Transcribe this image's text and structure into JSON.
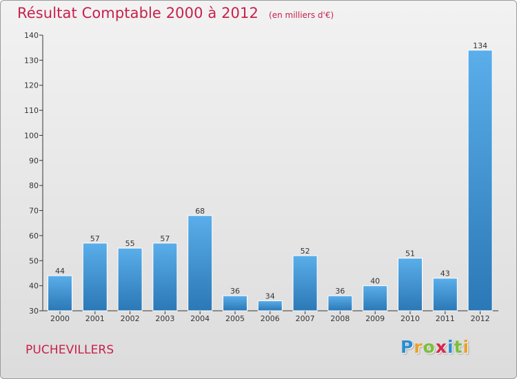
{
  "chart_data": {
    "type": "bar",
    "title": "Résultat Comptable 2000 à 2012",
    "unit_note": "(en milliers d'€)",
    "categories": [
      "2000",
      "2001",
      "2002",
      "2003",
      "2004",
      "2005",
      "2006",
      "2007",
      "2008",
      "2009",
      "2010",
      "2011",
      "2012"
    ],
    "values": [
      44,
      57,
      55,
      57,
      68,
      36,
      34,
      52,
      36,
      40,
      51,
      43,
      134
    ],
    "ylim": [
      30,
      140
    ],
    "yticks": [
      30,
      40,
      50,
      60,
      70,
      80,
      90,
      100,
      110,
      120,
      130,
      140
    ],
    "xlabel": "",
    "ylabel": "",
    "grid": false,
    "bar_color_top": "#5aaeea",
    "bar_color_bottom": "#2b78b6"
  },
  "footer": {
    "commune": "PUCHEVILLERS",
    "logo_letters": [
      "P",
      "r",
      "o",
      "x",
      "i",
      "t",
      "i"
    ],
    "logo_colors": [
      "#2a8fd0",
      "#e9a12b",
      "#7bbf3b",
      "#d8264b",
      "#2a8fd0",
      "#7bbf3b",
      "#e9a12b"
    ]
  },
  "colors": {
    "title": "#c8204b",
    "axis": "#333333"
  }
}
